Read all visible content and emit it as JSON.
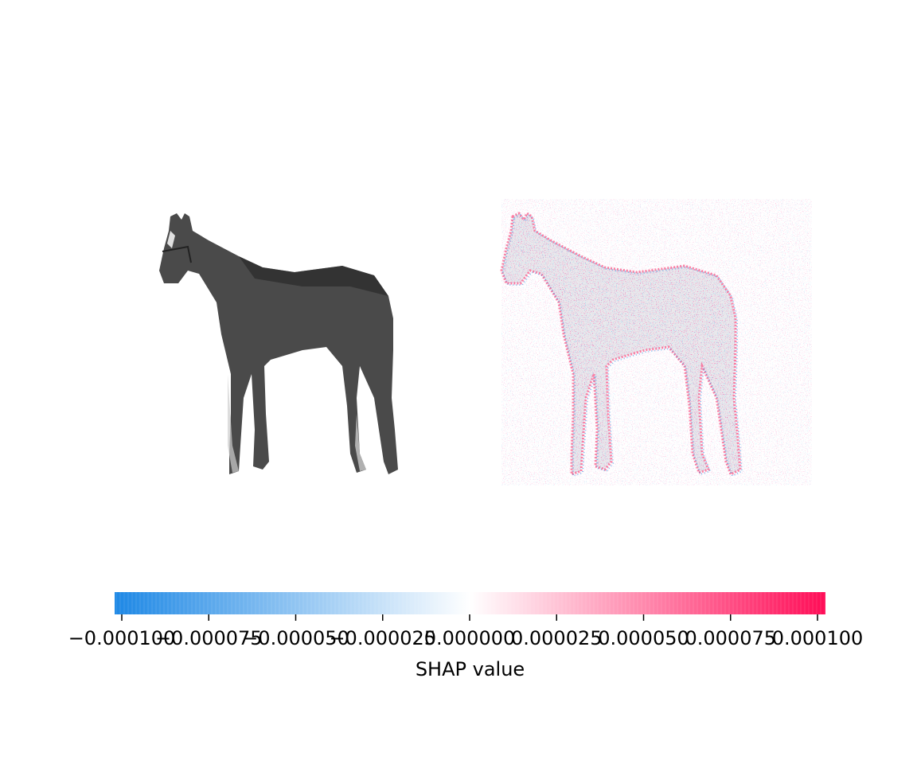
{
  "chart_data": {
    "type": "heatmap",
    "title": "",
    "panels": [
      {
        "name": "input-image",
        "content": "grayscale photo of a horse"
      },
      {
        "name": "shap-overlay",
        "content": "SHAP value attribution map of the horse"
      }
    ],
    "colorbar": {
      "label": "SHAP value",
      "range": [
        -0.0001,
        0.0001
      ],
      "ticks": [
        -0.0001,
        -7.5e-05,
        -5e-05,
        -2.5e-05,
        0.0,
        2.5e-05,
        5e-05,
        7.5e-05,
        0.0001
      ],
      "tick_labels": [
        "−0.000100",
        "−0.000075",
        "−0.000050",
        "−0.000025",
        "0.000000",
        "0.000025",
        "0.000050",
        "0.000075",
        "0.000100"
      ],
      "color_negative": "#1e88e5",
      "color_zero": "#ffffff",
      "color_positive": "#ff0d57"
    }
  }
}
